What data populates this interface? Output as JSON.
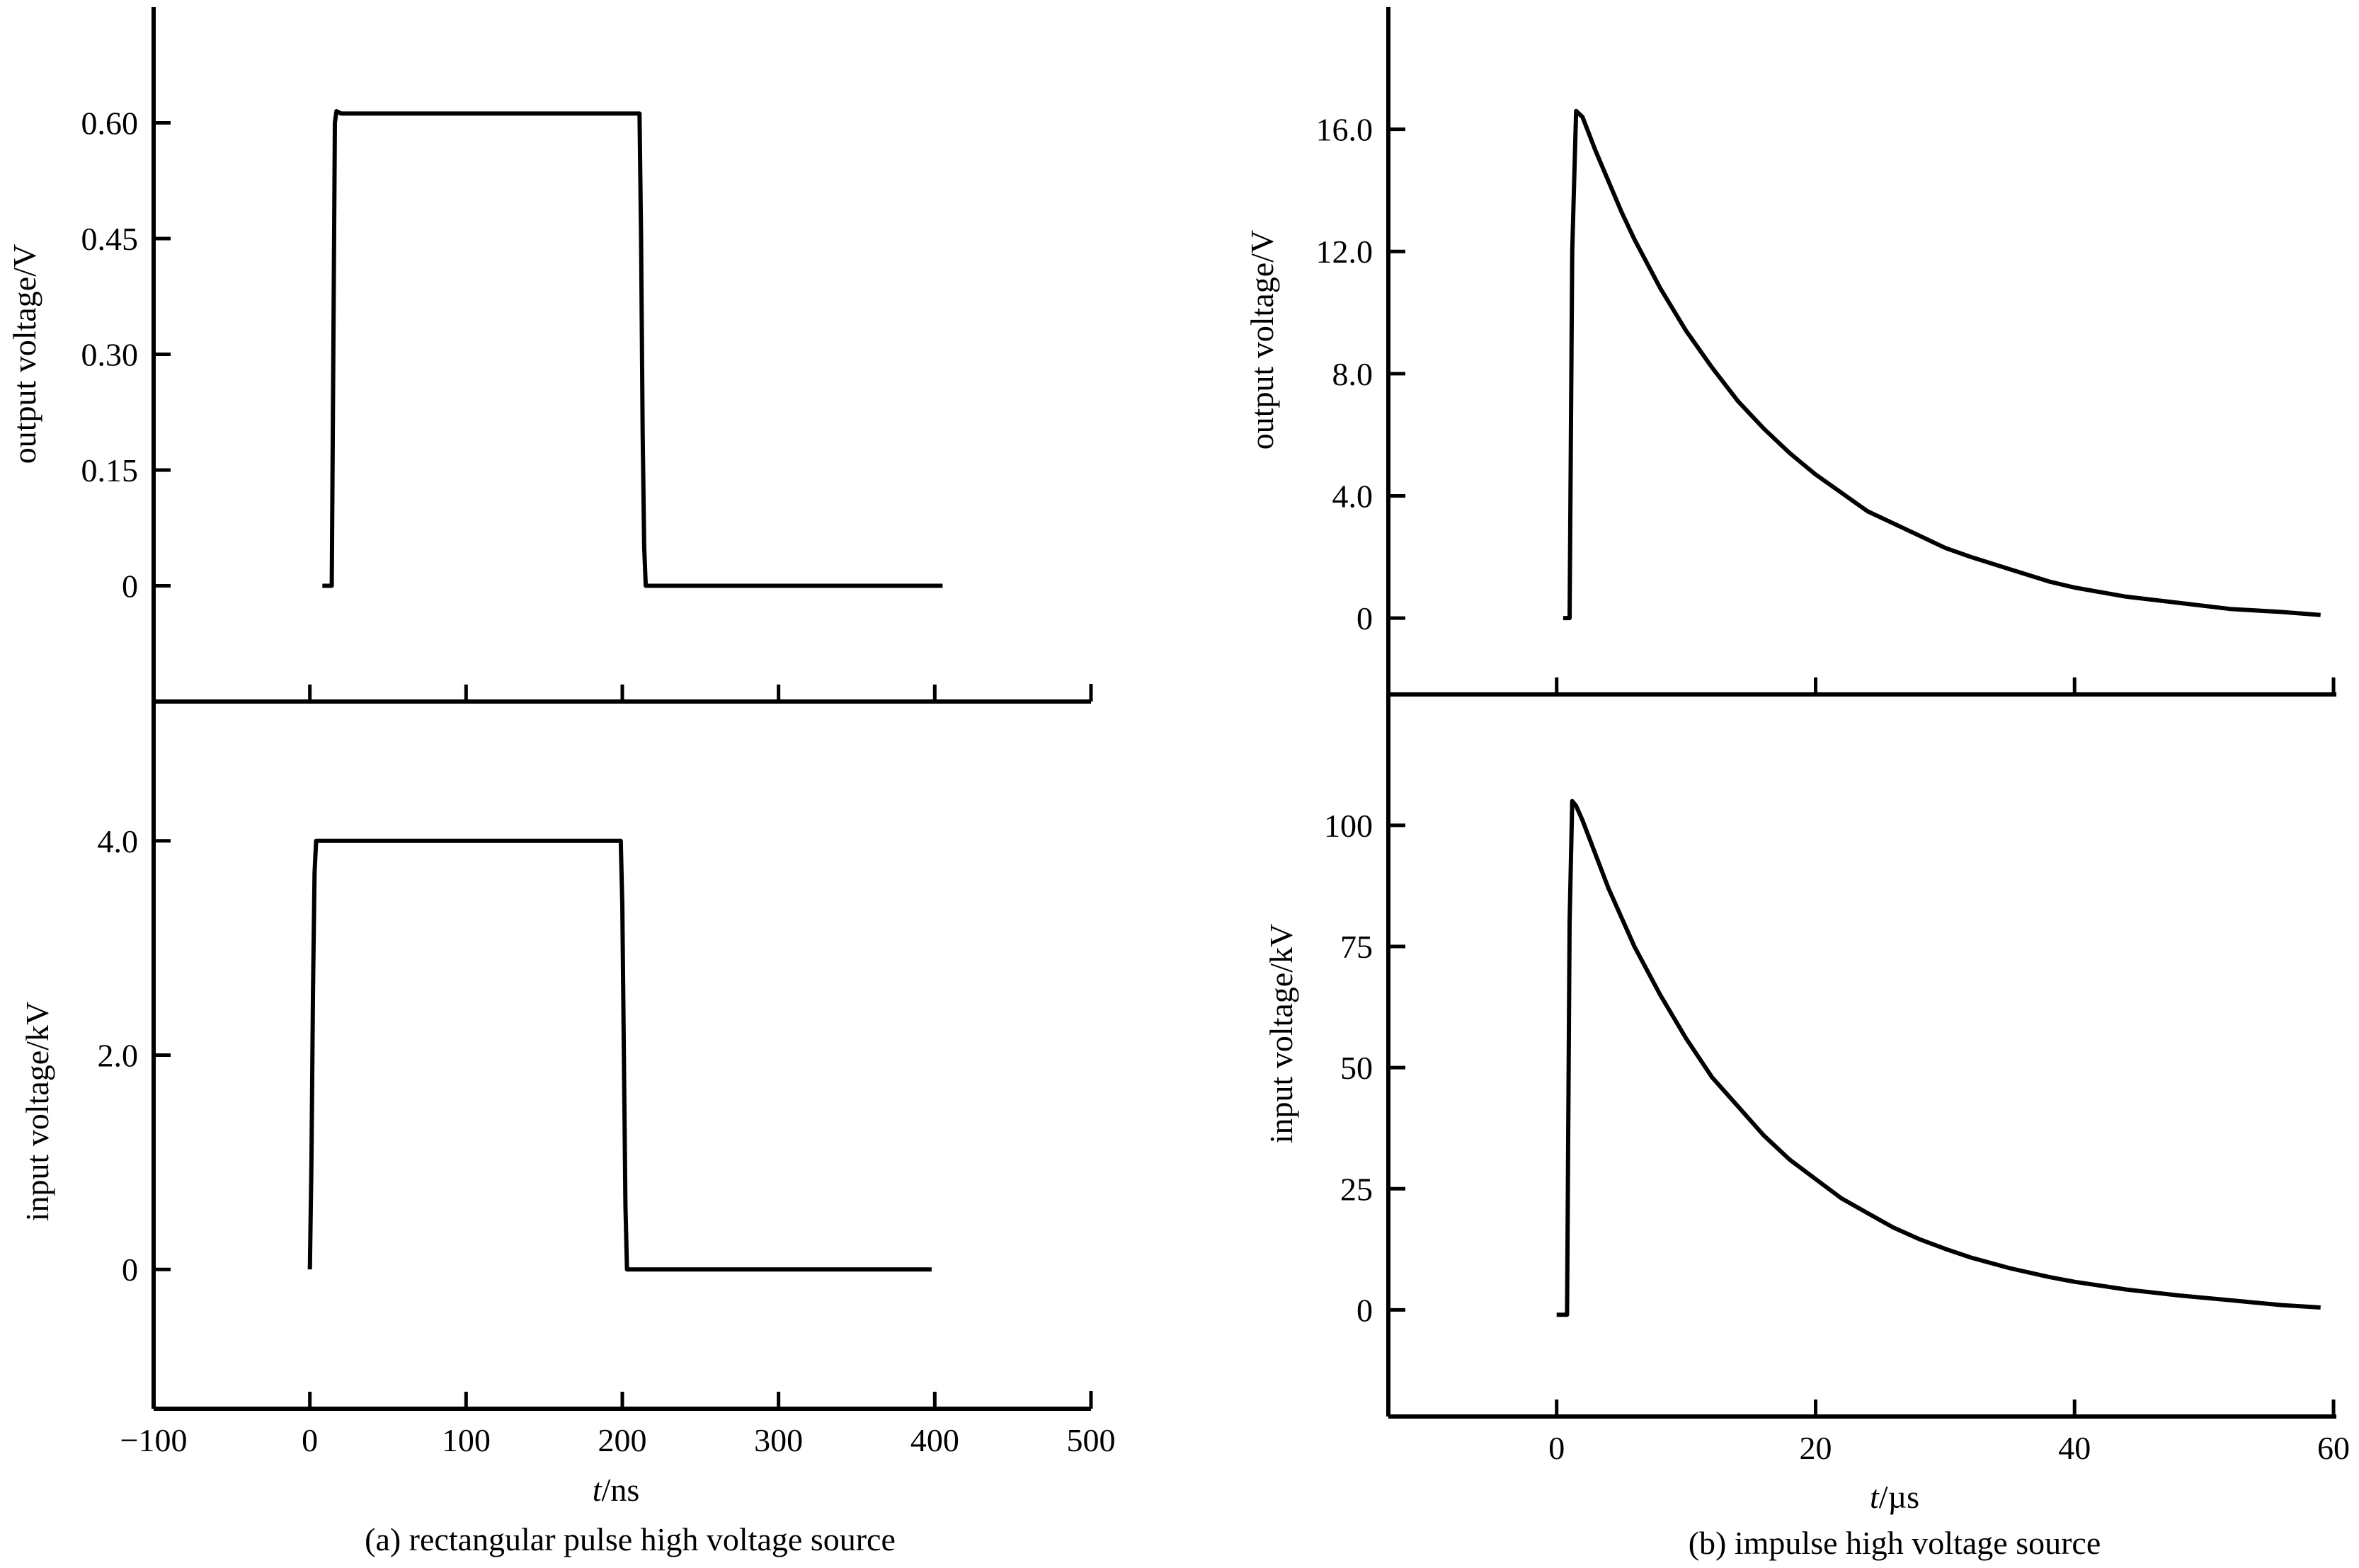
{
  "chart_data": [
    {
      "panel": "a",
      "type": "line",
      "caption": "(a) rectangular pulse high voltage source",
      "xlabel_italic": "t",
      "xlabel_rest": "/ns",
      "xlim": [
        -100,
        500
      ],
      "x_ticks": [
        "−100",
        "0",
        "100",
        "200",
        "300",
        "400",
        "500"
      ],
      "subplots": [
        {
          "position": "top",
          "ylabel": "output voltage/V",
          "ylim": [
            -0.15,
            0.75
          ],
          "y_ticks": [
            {
              "value": 0.6,
              "label": "0.60"
            },
            {
              "value": 0.45,
              "label": "0.45"
            },
            {
              "value": 0.3,
              "label": "0.30"
            },
            {
              "value": 0.15,
              "label": "0.15"
            },
            {
              "value": 0,
              "label": "0"
            }
          ],
          "series": [
            {
              "x": [
                8,
                14,
                15,
                16,
                17,
                20,
                100,
                190,
                211,
                212,
                213,
                214,
                215,
                220,
                300,
                405
              ],
              "y": [
                0,
                0,
                0.3,
                0.6,
                0.615,
                0.612,
                0.612,
                0.612,
                0.612,
                0.45,
                0.2,
                0.05,
                0,
                0,
                0,
                0
              ]
            }
          ]
        },
        {
          "position": "bottom",
          "ylabel": "input voltage/kV",
          "ylim": [
            -1.3,
            5.3
          ],
          "y_ticks": [
            {
              "value": 4.0,
              "label": "4.0"
            },
            {
              "value": 2.0,
              "label": "2.0"
            },
            {
              "value": 0,
              "label": "0"
            }
          ],
          "series": [
            {
              "x": [
                0,
                1,
                2,
                3,
                4,
                10,
                100,
                199,
                200,
                201,
                202,
                203,
                210,
                300,
                398
              ],
              "y": [
                0,
                1.0,
                2.6,
                3.7,
                4.0,
                4.0,
                4.0,
                4.0,
                3.4,
                2.0,
                0.6,
                0,
                0,
                0,
                0
              ]
            }
          ]
        }
      ]
    },
    {
      "panel": "b",
      "type": "line",
      "caption": "(b) impulse high voltage source",
      "xlabel_italic": "t",
      "xlabel_rest": "/µs",
      "xlim": [
        -13,
        60
      ],
      "x_ticks": [
        "0",
        "20",
        "40",
        "60"
      ],
      "subplots": [
        {
          "position": "top",
          "ylabel": "output voltage/V",
          "ylim": [
            -2.5,
            20
          ],
          "y_ticks": [
            {
              "value": 16.0,
              "label": "16.0"
            },
            {
              "value": 12.0,
              "label": "12.0"
            },
            {
              "value": 8.0,
              "label": "8.0"
            },
            {
              "value": 4.0,
              "label": "4.0"
            },
            {
              "value": 0,
              "label": "0"
            }
          ],
          "series": [
            {
              "x": [
                0.5,
                1.0,
                1.2,
                1.5,
                2,
                3,
                4,
                5,
                6,
                8,
                10,
                12,
                14,
                16,
                18,
                20,
                22,
                24,
                26,
                28,
                30,
                32,
                35,
                38,
                40,
                44,
                48,
                52,
                56,
                59
              ],
              "y": [
                0,
                0,
                12.0,
                16.6,
                16.4,
                15.3,
                14.3,
                13.3,
                12.4,
                10.8,
                9.4,
                8.2,
                7.1,
                6.2,
                5.4,
                4.7,
                4.1,
                3.5,
                3.1,
                2.7,
                2.3,
                2.0,
                1.6,
                1.2,
                1.0,
                0.7,
                0.5,
                0.3,
                0.2,
                0.1
              ]
            }
          ]
        },
        {
          "position": "bottom",
          "ylabel": "input voltage/kV",
          "ylim": [
            -22,
            127
          ],
          "y_ticks": [
            {
              "value": 100,
              "label": "100"
            },
            {
              "value": 75,
              "label": "75"
            },
            {
              "value": 50,
              "label": "50"
            },
            {
              "value": 25,
              "label": "25"
            },
            {
              "value": 0,
              "label": "0"
            }
          ],
          "series": [
            {
              "x": [
                0.0,
                0.8,
                1.0,
                1.2,
                1.5,
                2,
                3,
                4,
                5,
                6,
                8,
                10,
                12,
                14,
                16,
                18,
                20,
                22,
                24,
                26,
                28,
                30,
                32,
                35,
                38,
                40,
                44,
                48,
                52,
                56,
                59
              ],
              "y": [
                -1,
                -1,
                80,
                105,
                104,
                101,
                94,
                87,
                81,
                75,
                65,
                56,
                48,
                42,
                36,
                31,
                27,
                23,
                20,
                17,
                14.6,
                12.6,
                10.8,
                8.6,
                6.8,
                5.8,
                4.2,
                3.0,
                2.0,
                1.0,
                0.5
              ]
            }
          ]
        }
      ]
    }
  ]
}
